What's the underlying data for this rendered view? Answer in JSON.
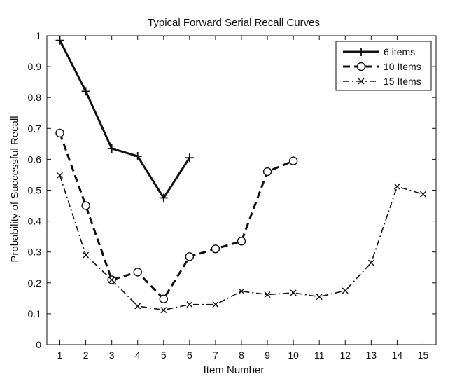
{
  "chart_data": {
    "type": "line",
    "title": "Typical Forward Serial Recall Curves",
    "xlabel": "Item Number",
    "ylabel": "Probability of Successful Recall",
    "xlim": [
      0.5,
      15.5
    ],
    "ylim": [
      0,
      1
    ],
    "xticks": [
      1,
      2,
      3,
      4,
      5,
      6,
      7,
      8,
      9,
      10,
      11,
      12,
      13,
      14,
      15
    ],
    "yticks": [
      0,
      0.1,
      0.2,
      0.3,
      0.4,
      0.5,
      0.6,
      0.7,
      0.8,
      0.9,
      1
    ],
    "ytick_labels": [
      "0",
      "0.1",
      "0.2",
      "0.3",
      "0.4",
      "0.5",
      "0.6",
      "0.7",
      "0.8",
      "0.9",
      "1"
    ],
    "grid": false,
    "legend_position": "top-right",
    "series": [
      {
        "name": "6 items",
        "marker": "plus",
        "line_style": "solid",
        "color": "#111111",
        "x": [
          1,
          2,
          3,
          4,
          5,
          6
        ],
        "values": [
          0.985,
          0.82,
          0.635,
          0.61,
          0.475,
          0.605
        ]
      },
      {
        "name": "10 Items",
        "marker": "circle",
        "line_style": "dashed",
        "color": "#111111",
        "x": [
          1,
          2,
          3,
          4,
          5,
          6,
          7,
          8,
          9,
          10
        ],
        "values": [
          0.685,
          0.45,
          0.21,
          0.235,
          0.148,
          0.285,
          0.31,
          0.335,
          0.56,
          0.595
        ]
      },
      {
        "name": "15 Items",
        "marker": "x",
        "line_style": "dashdot",
        "color": "#111111",
        "x": [
          1,
          2,
          3,
          4,
          5,
          6,
          7,
          8,
          9,
          10,
          11,
          12,
          13,
          14,
          15
        ],
        "values": [
          0.548,
          0.29,
          0.21,
          0.125,
          0.112,
          0.13,
          0.13,
          0.173,
          0.162,
          0.168,
          0.155,
          0.175,
          0.265,
          0.512,
          0.487
        ]
      }
    ]
  }
}
